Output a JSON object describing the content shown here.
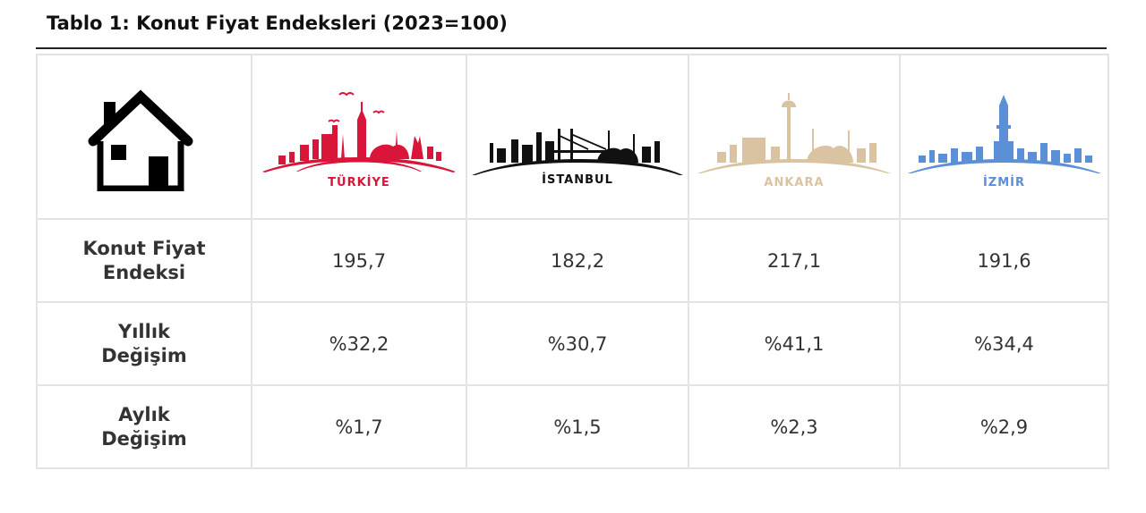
{
  "title": "Tablo 1: Konut Fiyat Endeksleri (2023=100)",
  "columns": [
    {
      "name": "TÜRKİYE",
      "color": "#d9153a",
      "icon": "turkiye-skyline-icon"
    },
    {
      "name": "İSTANBUL",
      "color": "#111111",
      "icon": "istanbul-skyline-icon"
    },
    {
      "name": "ANKARA",
      "color": "#d9c3a0",
      "icon": "ankara-skyline-icon"
    },
    {
      "name": "İZMİR",
      "color": "#5b8fd6",
      "icon": "izmir-skyline-icon"
    }
  ],
  "header_icon": "house-icon",
  "rows": [
    {
      "label_line1": "Konut Fiyat",
      "label_line2": "Endeksi",
      "values": [
        "195,7",
        "182,2",
        "217,1",
        "191,6"
      ]
    },
    {
      "label_line1": "Yıllık",
      "label_line2": "Değişim",
      "values": [
        "%32,2",
        "%30,7",
        "%41,1",
        "%34,4"
      ]
    },
    {
      "label_line1": "Aylık",
      "label_line2": "Değişim",
      "values": [
        "%1,7",
        "%1,5",
        "%2,3",
        "%2,9"
      ]
    }
  ]
}
